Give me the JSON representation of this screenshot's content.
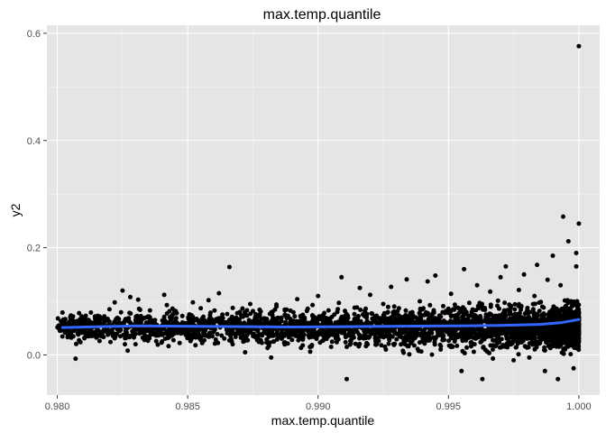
{
  "chart_data": {
    "type": "scatter",
    "title": "max.temp.quantile",
    "xlabel": "max.temp.quantile",
    "ylabel": "y2",
    "xlim": [
      0.9796,
      1.0008
    ],
    "ylim": [
      -0.075,
      0.615
    ],
    "x_ticks": [
      0.98,
      0.985,
      0.99,
      0.995,
      1.0
    ],
    "x_tick_labels": [
      "0.980",
      "0.985",
      "0.990",
      "0.995",
      "1.000"
    ],
    "y_ticks": [
      0.0,
      0.2,
      0.4,
      0.6
    ],
    "y_tick_labels": [
      "0.0",
      "0.2",
      "0.4",
      "0.6"
    ],
    "grid": true,
    "legend": "none",
    "background_color": "#e5e5e5",
    "point_color": "#000000",
    "smooth_color": "#3366ff",
    "series": [
      {
        "kind": "points",
        "points": [
          [
            0.9802,
            0.079
          ],
          [
            0.9803,
            0.066
          ],
          [
            0.9804,
            0.045
          ],
          [
            0.9806,
            0.072
          ],
          [
            0.9807,
            -0.007
          ],
          [
            0.9808,
            0.038
          ],
          [
            0.981,
            0.055
          ],
          [
            0.9812,
            0.065
          ],
          [
            0.9815,
            0.052
          ],
          [
            0.9817,
            0.043
          ],
          [
            0.982,
            0.085
          ],
          [
            0.9822,
            0.098
          ],
          [
            0.9823,
            0.069
          ],
          [
            0.9824,
            0.045
          ],
          [
            0.9825,
            0.12
          ],
          [
            0.9826,
            0.031
          ],
          [
            0.9827,
            0.008
          ],
          [
            0.9828,
            0.108
          ],
          [
            0.983,
            0.02
          ],
          [
            0.9831,
            0.103
          ],
          [
            0.9832,
            0.06
          ],
          [
            0.9833,
            0.041
          ],
          [
            0.9835,
            0.072
          ],
          [
            0.9838,
            0.055
          ],
          [
            0.984,
            0.023
          ],
          [
            0.9841,
            0.112
          ],
          [
            0.9842,
            0.093
          ],
          [
            0.9845,
            0.082
          ],
          [
            0.9846,
            0.048
          ],
          [
            0.9848,
            0.058
          ],
          [
            0.985,
            0.034
          ],
          [
            0.9852,
            0.098
          ],
          [
            0.9853,
            0.018
          ],
          [
            0.9855,
            0.087
          ],
          [
            0.9856,
            0.042
          ],
          [
            0.9858,
            0.102
          ],
          [
            0.986,
            0.061
          ],
          [
            0.9862,
            0.115
          ],
          [
            0.9863,
            0.036
          ],
          [
            0.9865,
            0.053
          ],
          [
            0.9866,
            0.164
          ],
          [
            0.9867,
            0.071
          ],
          [
            0.9869,
            0.078
          ],
          [
            0.9871,
            0.035
          ],
          [
            0.9872,
            0.005
          ],
          [
            0.9874,
            0.095
          ],
          [
            0.9876,
            0.048
          ],
          [
            0.9878,
            0.081
          ],
          [
            0.988,
            0.061
          ],
          [
            0.9882,
            -0.005
          ],
          [
            0.9884,
            0.094
          ],
          [
            0.9886,
            0.041
          ],
          [
            0.9888,
            0.073
          ],
          [
            0.989,
            0.028
          ],
          [
            0.9892,
            0.104
          ],
          [
            0.9894,
            0.036
          ],
          [
            0.9896,
            0.086
          ],
          [
            0.9897,
            0.006
          ],
          [
            0.9898,
            0.064
          ],
          [
            0.99,
            0.11
          ],
          [
            0.9902,
            0.027
          ],
          [
            0.9904,
            0.083
          ],
          [
            0.9905,
            0.015
          ],
          [
            0.9906,
            0.048
          ],
          [
            0.9908,
            0.097
          ],
          [
            0.9909,
            0.145
          ],
          [
            0.991,
            0.066
          ],
          [
            0.9911,
            -0.045
          ],
          [
            0.9912,
            0.04
          ],
          [
            0.9914,
            0.088
          ],
          [
            0.9916,
            0.125
          ],
          [
            0.9918,
            0.057
          ],
          [
            0.9919,
            0.02
          ],
          [
            0.992,
            0.112
          ],
          [
            0.9922,
            0.072
          ],
          [
            0.9924,
            0.034
          ],
          [
            0.9925,
            0.095
          ],
          [
            0.9926,
            0.01
          ],
          [
            0.9928,
            0.127
          ],
          [
            0.993,
            0.062
          ],
          [
            0.9931,
            0.087
          ],
          [
            0.9932,
            0.045
          ],
          [
            0.9934,
            0.141
          ],
          [
            0.9935,
            0.001
          ],
          [
            0.9936,
            0.074
          ],
          [
            0.9938,
            0.055
          ],
          [
            0.9939,
            0.1
          ],
          [
            0.994,
            0.025
          ],
          [
            0.9942,
            0.137
          ],
          [
            0.9943,
            0.069
          ],
          [
            0.9945,
            0.148
          ],
          [
            0.9946,
            0.039
          ],
          [
            0.9947,
            0.01
          ],
          [
            0.9948,
            0.091
          ],
          [
            0.995,
            0.058
          ],
          [
            0.9951,
            0.114
          ],
          [
            0.9952,
            0.033
          ],
          [
            0.9954,
            0.078
          ],
          [
            0.9955,
            -0.03
          ],
          [
            0.9956,
            0.16
          ],
          [
            0.9957,
            0.05
          ],
          [
            0.9958,
            0.097
          ],
          [
            0.996,
            0.02
          ],
          [
            0.9961,
            0.13
          ],
          [
            0.9962,
            0.068
          ],
          [
            0.9963,
            -0.045
          ],
          [
            0.9964,
            0.084
          ],
          [
            0.9965,
            0.04
          ],
          [
            0.9966,
            0.118
          ],
          [
            0.9967,
            0.01
          ],
          [
            0.9968,
            0.073
          ],
          [
            0.9969,
            0.101
          ],
          [
            0.997,
            0.145
          ],
          [
            0.9971,
            0.052
          ],
          [
            0.9972,
            0.165
          ],
          [
            0.9973,
            0.028
          ],
          [
            0.9974,
            0.091
          ],
          [
            0.9975,
            -0.01
          ],
          [
            0.9976,
            0.062
          ],
          [
            0.9977,
            0.121
          ],
          [
            0.9978,
            0.035
          ],
          [
            0.9979,
            0.15
          ],
          [
            0.998,
            0.08
          ],
          [
            0.9981,
            -0.005
          ],
          [
            0.9982,
            0.056
          ],
          [
            0.9983,
            0.11
          ],
          [
            0.9984,
            0.168
          ],
          [
            0.9985,
            0.025
          ],
          [
            0.9986,
            0.09
          ],
          [
            0.9987,
            -0.03
          ],
          [
            0.9988,
            0.14
          ],
          [
            0.9989,
            0.047
          ],
          [
            0.999,
            0.185
          ],
          [
            0.9991,
            0.07
          ],
          [
            0.9992,
            -0.045
          ],
          [
            0.9993,
            0.13
          ],
          [
            0.9994,
            0.258
          ],
          [
            0.9995,
            0.03
          ],
          [
            0.9996,
            0.212
          ],
          [
            0.9997,
            0.1
          ],
          [
            0.9998,
            -0.025
          ],
          [
            0.9999,
            0.19
          ],
          [
            0.9999,
            0.165
          ],
          [
            1.0,
            0.245
          ],
          [
            1.0,
            0.576
          ]
        ]
      },
      {
        "kind": "smooth",
        "points": [
          [
            0.9802,
            0.051
          ],
          [
            0.983,
            0.054
          ],
          [
            0.986,
            0.053
          ],
          [
            0.989,
            0.052
          ],
          [
            0.992,
            0.053
          ],
          [
            0.995,
            0.054
          ],
          [
            0.997,
            0.055
          ],
          [
            0.9985,
            0.057
          ],
          [
            0.9993,
            0.06
          ],
          [
            1.0,
            0.066
          ]
        ]
      }
    ]
  }
}
